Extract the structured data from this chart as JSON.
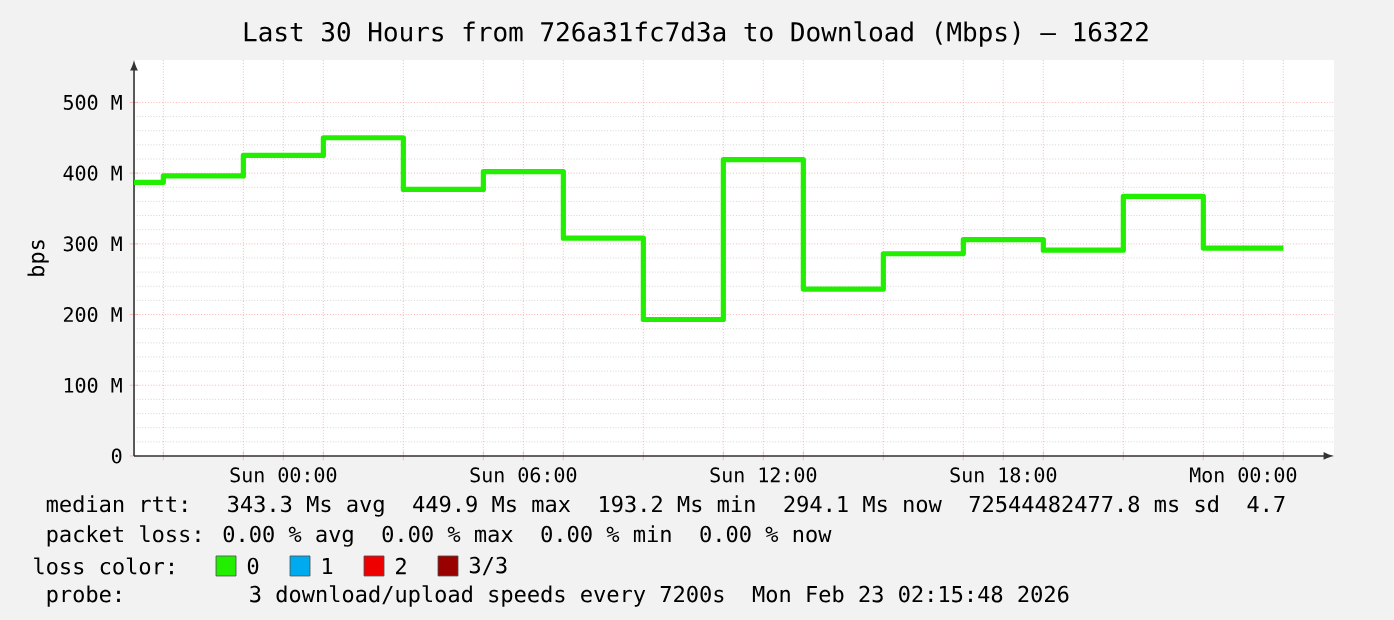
{
  "chart_data": {
    "type": "step",
    "title": "Last 30 Hours from 726a31fc7d3a to Download (Mbps) – 16322",
    "ylabel": "bps",
    "legend_title": "loss color:",
    "legend": "bottom",
    "grid": true,
    "marker": "none",
    "xlim": [
      "2026-02-21T20:16",
      "2026-02-23T02:16"
    ],
    "ylim": [
      0,
      560
    ],
    "xticks": [
      {
        "value": "2026-02-21T21:00",
        "label": null
      },
      {
        "value": "2026-02-21T23:00",
        "label": null
      },
      {
        "value": "2026-02-22T00:00",
        "label": "Sun 00:00"
      },
      {
        "value": "2026-02-22T01:00",
        "label": null
      },
      {
        "value": "2026-02-22T03:00",
        "label": null
      },
      {
        "value": "2026-02-22T05:00",
        "label": null
      },
      {
        "value": "2026-02-22T06:00",
        "label": "Sun 06:00"
      },
      {
        "value": "2026-02-22T07:00",
        "label": null
      },
      {
        "value": "2026-02-22T09:00",
        "label": null
      },
      {
        "value": "2026-02-22T11:00",
        "label": null
      },
      {
        "value": "2026-02-22T12:00",
        "label": "Sun 12:00"
      },
      {
        "value": "2026-02-22T13:00",
        "label": null
      },
      {
        "value": "2026-02-22T15:00",
        "label": null
      },
      {
        "value": "2026-02-22T17:00",
        "label": null
      },
      {
        "value": "2026-02-22T18:00",
        "label": "Sun 18:00"
      },
      {
        "value": "2026-02-22T19:00",
        "label": null
      },
      {
        "value": "2026-02-22T21:00",
        "label": null
      },
      {
        "value": "2026-02-22T23:00",
        "label": null
      },
      {
        "value": "2026-02-23T00:00",
        "label": "Mon 00:00"
      },
      {
        "value": "2026-02-23T01:00",
        "label": null
      }
    ],
    "yticks": [
      {
        "value": 0,
        "label": "0"
      },
      {
        "value": 100,
        "label": "100 M"
      },
      {
        "value": 200,
        "label": "200 M"
      },
      {
        "value": 300,
        "label": "300 M"
      },
      {
        "value": 400,
        "label": "400 M"
      },
      {
        "value": 500,
        "label": "500 M"
      }
    ],
    "series": [
      {
        "name": "0",
        "color": "#22ee00",
        "x": [
          "2026-02-21T20:16",
          "2026-02-21T21:00",
          "2026-02-21T23:00",
          "2026-02-22T01:00",
          "2026-02-22T03:00",
          "2026-02-22T05:00",
          "2026-02-22T07:00",
          "2026-02-22T09:00",
          "2026-02-22T11:00",
          "2026-02-22T13:00",
          "2026-02-22T15:00",
          "2026-02-22T17:00",
          "2026-02-22T19:00",
          "2026-02-22T21:00",
          "2026-02-22T23:00",
          "2026-02-23T01:00"
        ],
        "values": [
          387,
          396,
          425,
          450,
          377,
          402,
          308,
          193,
          419,
          236,
          286,
          306,
          291,
          367,
          294,
          294
        ]
      },
      {
        "name": "1",
        "color": "#00aaee",
        "values": [
          null
        ]
      },
      {
        "name": "2",
        "color": "#ee0000",
        "values": [
          null
        ]
      },
      {
        "name": "3/3",
        "color": "#990000",
        "values": [
          null
        ]
      }
    ],
    "annotations": [
      "median rtt:  343.3 Ms avg  449.9 Ms max  193.2 Ms min  294.1 Ms now  72544482477.8 ms sd  4.7",
      "packet loss: 0.00 % avg  0.00 % max  0.00 % min  0.00 % now",
      "probe:       3 download/upload speeds every 7200s  Mon Feb 23 02:15:48 2026"
    ]
  }
}
